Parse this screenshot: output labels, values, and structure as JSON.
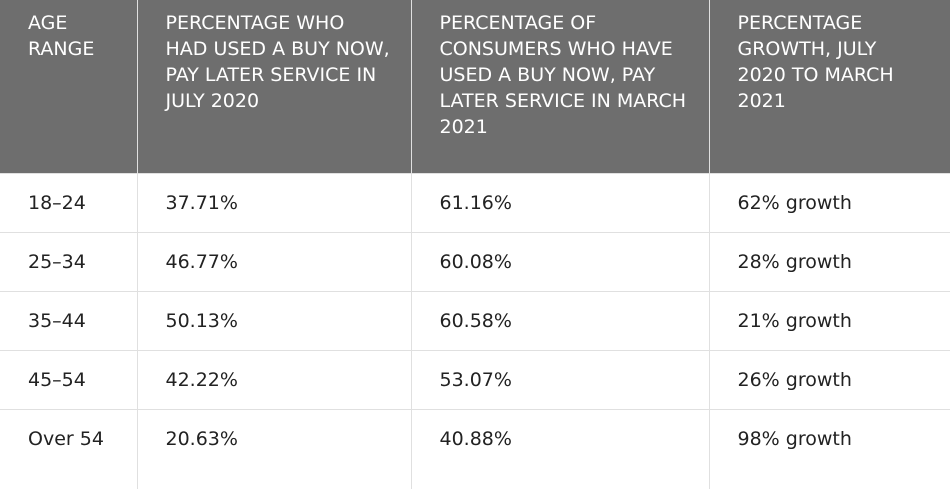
{
  "table": {
    "header": [
      "AGE RANGE",
      "PERCENTAGE WHO HAD USED A BUY NOW, PAY LATER SERVICE IN JULY 2020",
      "PERCENTAGE OF CONSUMERS WHO HAVE USED A BUY NOW, PAY LATER SERVICE IN MARCH 2021",
      "PERCENTAGE GROWTH, JULY 2020 TO MARCH 2021"
    ],
    "rows": [
      [
        "18–24",
        "37.71%",
        "61.16%",
        "62% growth"
      ],
      [
        "25–34",
        "46.77%",
        "60.08%",
        "28% growth"
      ],
      [
        "35–44",
        "50.13%",
        "60.58%",
        "21% growth"
      ],
      [
        "45–54",
        "42.22%",
        "53.07%",
        "26% growth"
      ],
      [
        "Over 54",
        "20.63%",
        "40.88%",
        "98% growth"
      ]
    ]
  }
}
